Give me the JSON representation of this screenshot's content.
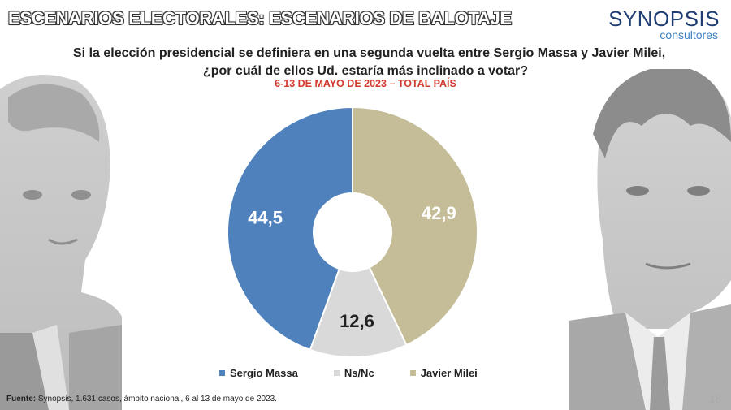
{
  "header": {
    "title": "ESCENARIOS ELECTORALES: ESCENARIOS DE BALOTAJE"
  },
  "logo": {
    "main": "SYNOPSIS",
    "sub": "consultores"
  },
  "question": {
    "line1": "Si la elección presidencial se definiera en una segunda vuelta entre Sergio Massa y Javier Milei,",
    "line2": "¿por cuál de ellos Ud. estaría más inclinado a votar?"
  },
  "subtitle": "6-13 DE MAYO DE 2023 – TOTAL PAÍS",
  "chart_data": {
    "type": "pie",
    "variant": "donut",
    "categories": [
      "Sergio Massa",
      "Ns/Nc",
      "Javier Milei"
    ],
    "values": [
      44.5,
      12.6,
      42.9
    ],
    "labels": [
      "44,5",
      "12,6",
      "42,9"
    ],
    "colors": [
      "#4f81bd",
      "#d9d9d9",
      "#c4bd97"
    ],
    "label_colors": [
      "#ffffff",
      "#222222",
      "#ffffff"
    ],
    "start": "top, clockwise from Javier Milei",
    "legend_position": "bottom"
  },
  "legend": {
    "items": [
      {
        "label": "Sergio Massa",
        "color": "#4f81bd"
      },
      {
        "label": "Ns/Nc",
        "color": "#d9d9d9"
      },
      {
        "label": "Javier Milei",
        "color": "#c4bd97"
      }
    ]
  },
  "footer": {
    "label": "Fuente:",
    "text": " Synopsis, 1.631 casos, ámbito nacional, 6 al 13 de mayo de 2023."
  },
  "page_number": "16",
  "photos": {
    "left": "portrait-sergio-massa",
    "right": "portrait-javier-milei"
  }
}
